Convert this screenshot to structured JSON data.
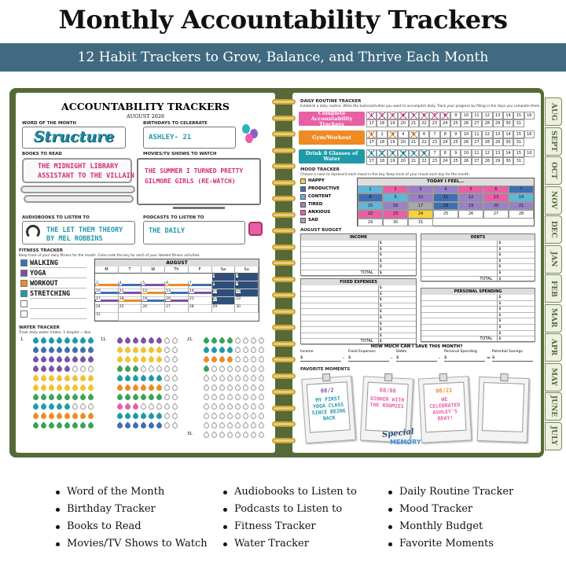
{
  "header": {
    "title": "Monthly Accountability Trackers",
    "subtitle": "12 Habit Trackers to Grow, Balance, and Thrive Each Month"
  },
  "days": [
    1,
    2,
    3,
    4,
    5,
    6,
    7,
    8,
    9,
    10,
    11,
    12,
    13,
    14,
    15,
    16,
    17,
    18,
    19,
    20,
    21,
    22,
    23,
    24,
    25,
    26,
    27,
    28,
    29,
    30,
    31
  ],
  "left_page": {
    "title": "ACCOUNTABILITY TRACKERS",
    "date": "AUGUST 2026",
    "word_of_month": {
      "label": "WORD OF THE MONTH",
      "value": "Structure"
    },
    "birthdays": {
      "label": "BIRTHDAYS TO CELEBRATE",
      "entries": [
        "ASHLEY- 21"
      ]
    },
    "books": {
      "label": "BOOKS TO READ",
      "entries": [
        "THE MIDNIGHT LIBRARY",
        "ASSISTANT TO THE VILLAIN"
      ]
    },
    "movies": {
      "label": "MOVIES/TV SHOWS TO WATCH",
      "entries": [
        "THE SUMMER I TURNED PRETTY",
        "GILMORE GIRLS (RE-WATCH)"
      ]
    },
    "audiobooks": {
      "label": "AUDIOBOOKS TO LISTEN TO",
      "entries": [
        "THE LET THEM THEORY",
        "BY MEL ROBBINS"
      ]
    },
    "podcasts": {
      "label": "PODCASTS TO LISTEN TO",
      "entries": [
        "THE DAILY"
      ]
    },
    "fitness": {
      "label": "FITNESS TRACKER",
      "description": "Keep track of your daily fitness for the month. Color-code the key for each of your labeled fitness activities.",
      "activities": [
        "WALKING",
        "YOGA",
        "WORKOUT",
        "STRETCHING"
      ],
      "month": "AUGUST",
      "weekdays": [
        "M",
        "T",
        "W",
        "Th",
        "F",
        "Sa",
        "Su"
      ]
    },
    "water": {
      "label": "WATER TRACKER",
      "description": "Track daily water intake. 1 droplet = 8oz.",
      "row_labels": [
        "1.",
        "11.",
        "21.",
        "31."
      ]
    }
  },
  "right_page": {
    "routine": {
      "label": "DAILY ROUTINE TRACKER",
      "description": "Establish a daily routine. Write the tasks/activities you want to accomplish daily. Track your progress by filling in the days you complete them.",
      "tasks": [
        "Complete Accountability Trackers",
        "Gym/Workout",
        "Drink 8 Glasses of Water"
      ]
    },
    "mood": {
      "label": "MOOD TRACKER",
      "description": "Choose a color to represent each mood in the key. Keep track of your mood each day for the month.",
      "moods": [
        "HAPPY",
        "PRODUCTIVE",
        "CONTENT",
        "TIRED",
        "ANXIOUS",
        "SAD"
      ],
      "heading": "TODAY I FEEL..."
    },
    "budget": {
      "label": "AUGUST BUDGET",
      "tables": [
        "INCOME",
        "DEBTS",
        "FIXED EXPENSES",
        "PERSONAL SPENDING"
      ],
      "currency": "$",
      "total": "TOTAL",
      "savings_question": "HOW MUCH CAN I SAVE THIS MONTH?",
      "savings_terms": [
        "Income",
        "Fixed Expenses",
        "Debts",
        "Personal Spending",
        "Potential Savings"
      ],
      "operators": [
        "-",
        "-",
        "-",
        "="
      ]
    },
    "moments": {
      "label": "FAVORITE MOMENTS",
      "photos": [
        {
          "date": "08/2",
          "caption": "MY FIRST YOGA CLASS SINCE BEING BACK"
        },
        {
          "date": "08/08",
          "caption": "DINNER WITH THE ROOMIES"
        },
        {
          "date": "08/21",
          "caption": "WE CELEBRATED ASHLEY'S BDAY!"
        }
      ],
      "sticker": [
        "Special",
        "MEMORY"
      ]
    }
  },
  "tabs": [
    "AUG",
    "SEPT",
    "OCT",
    "NOV",
    "DEC",
    "JAN",
    "FEB",
    "MAR",
    "APR",
    "MAY",
    "JUNE",
    "JULY"
  ],
  "features": [
    "Word of the Month",
    "Birthday Tracker",
    "Books to Read",
    "Movies/TV Shows to Watch",
    "Audiobooks to Listen to",
    "Podcasts to Listen to",
    "Fitness Tracker",
    "Water Tracker",
    "Daily Routine Tracker",
    "Mood Tracker",
    "Monthly Budget",
    "Favorite Moments"
  ]
}
